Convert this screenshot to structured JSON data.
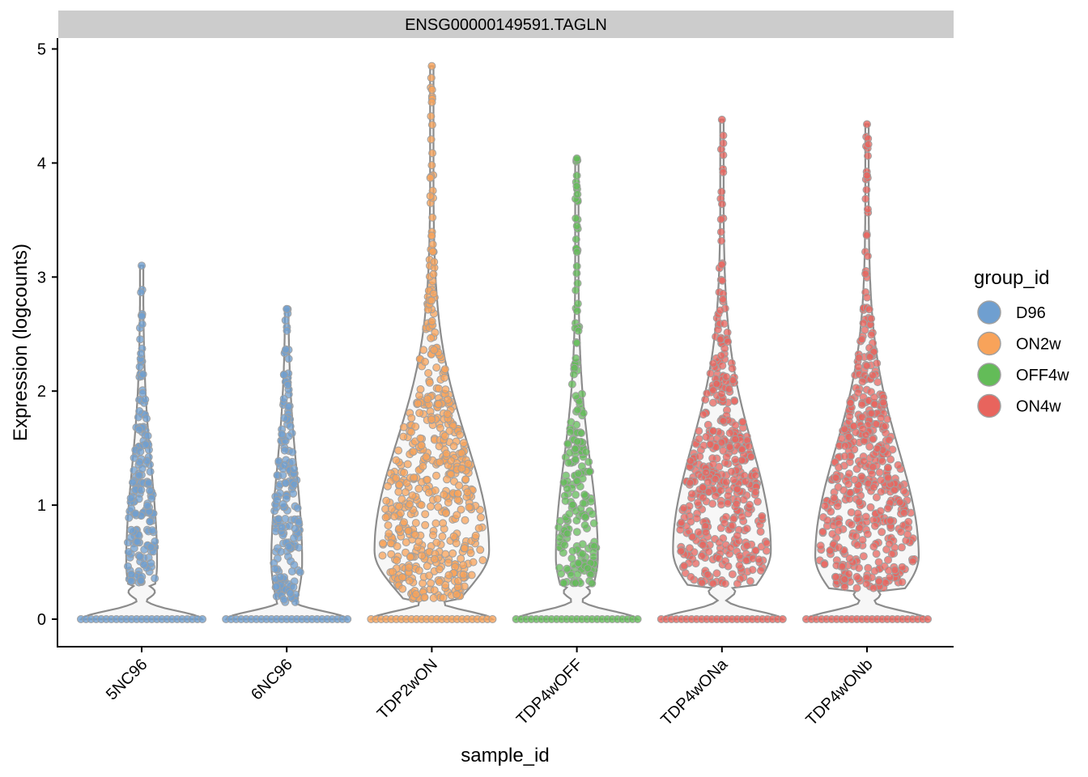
{
  "chart_data": {
    "type": "violin",
    "panel_title": "ENSG00000149591.TAGLN",
    "xlabel": "sample_id",
    "ylabel": "Expression (logcounts)",
    "ylim": [
      -0.25,
      5.1
    ],
    "yticks": [
      0,
      1,
      2,
      3,
      4,
      5
    ],
    "categories": [
      "5NC96",
      "6NC96",
      "TDP2wON",
      "TDP4wOFF",
      "TDP4wONa",
      "TDP4wONb"
    ],
    "grid": false,
    "legend": {
      "title": "group_id",
      "position": "right",
      "entries": [
        {
          "label": "D96",
          "color": "#6f9fd0"
        },
        {
          "label": "ON2w",
          "color": "#f8a35a"
        },
        {
          "label": "OFF4w",
          "color": "#63bc58"
        },
        {
          "label": "ON4w",
          "color": "#e8645d"
        }
      ]
    },
    "violins": [
      {
        "sample": "5NC96",
        "group": "D96",
        "max": 3.1,
        "nonzero_min": 0.3,
        "bulk_center": 0.5,
        "density_scale": 0.25,
        "zero_halfwidth": 0.5
      },
      {
        "sample": "6NC96",
        "group": "D96",
        "max": 2.72,
        "nonzero_min": 0.13,
        "bulk_center": 0.5,
        "density_scale": 0.25,
        "zero_halfwidth": 0.5
      },
      {
        "sample": "TDP2wON",
        "group": "ON2w",
        "max": 4.85,
        "nonzero_min": 0.17,
        "bulk_center": 0.6,
        "density_scale": 1.0,
        "zero_halfwidth": 0.5
      },
      {
        "sample": "TDP4wOFF",
        "group": "OFF4w",
        "max": 4.04,
        "nonzero_min": 0.3,
        "bulk_center": 0.55,
        "density_scale": 0.35,
        "zero_halfwidth": 0.5
      },
      {
        "sample": "TDP4wONa",
        "group": "ON4w",
        "max": 4.38,
        "nonzero_min": 0.3,
        "bulk_center": 0.6,
        "density_scale": 0.85,
        "zero_halfwidth": 0.5
      },
      {
        "sample": "TDP4wONb",
        "group": "ON4w",
        "max": 4.34,
        "nonzero_min": 0.27,
        "bulk_center": 0.55,
        "density_scale": 0.9,
        "zero_halfwidth": 0.5
      }
    ]
  }
}
